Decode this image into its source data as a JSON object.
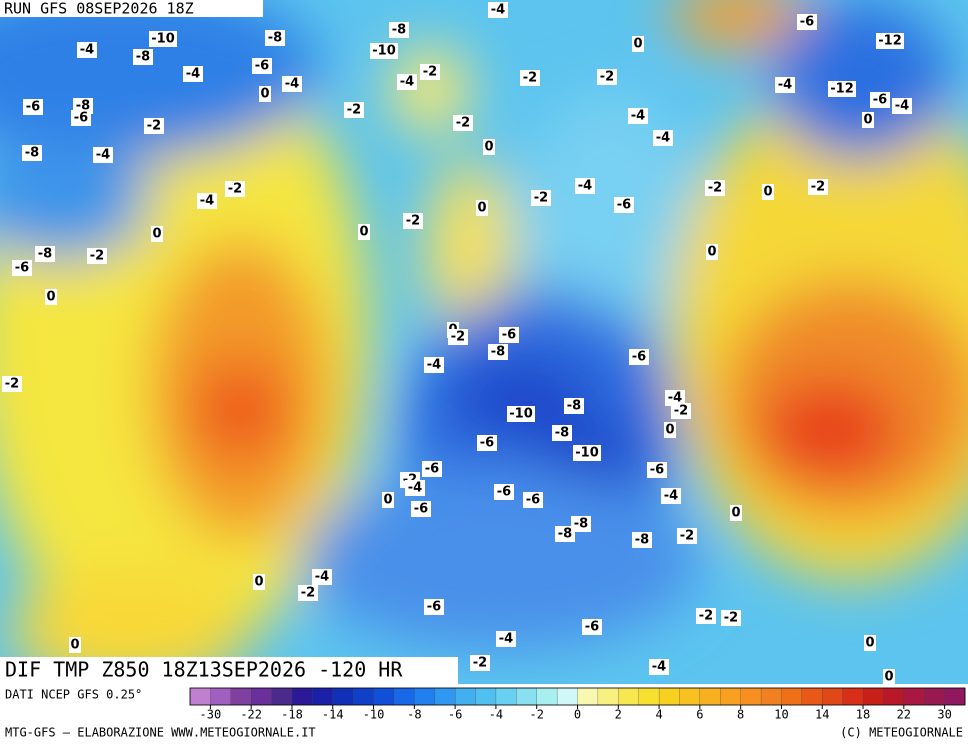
{
  "header": {
    "run": "RUN GFS 08SEP2026 18Z"
  },
  "map": {
    "title": "DIF TMP Z850 18Z13SEP2026 -120 HR",
    "contour_labels": [
      -4,
      -6,
      -12,
      -8,
      -10,
      -8,
      -4,
      -8,
      -10,
      0,
      -6,
      -4,
      -2,
      -2,
      -2,
      -4,
      -4,
      0,
      -4,
      -12,
      -6,
      -4,
      -6,
      -8,
      -6,
      -2,
      -4,
      0,
      -2,
      -2,
      -4,
      0,
      -8,
      -4,
      -2,
      -4,
      -2,
      0,
      -2,
      -4,
      -2,
      0,
      -6,
      -2,
      0,
      0,
      -8,
      -2,
      0,
      -6,
      0,
      0,
      -2,
      -6,
      -8,
      -6,
      -4,
      -2,
      -4,
      -2,
      -10,
      -8,
      0,
      -8,
      -6,
      -10,
      -6,
      -6,
      -2,
      -4,
      0,
      -6,
      -6,
      -4,
      -6,
      0,
      -8,
      -8,
      -2,
      -8,
      0,
      -4,
      -2,
      -6,
      -2,
      -2,
      -6,
      -4,
      0,
      0,
      -2,
      -4,
      0
    ]
  },
  "colorbar": {
    "colors": [
      "#c080d0",
      "#a060c0",
      "#8040a0",
      "#6a2f9a",
      "#4a2a8c",
      "#2a1a98",
      "#1a20a8",
      "#1030b8",
      "#1040c8",
      "#1050d8",
      "#1868e8",
      "#2080f0",
      "#3098f0",
      "#40b0f0",
      "#50c0f0",
      "#68d0f0",
      "#88e0f0",
      "#a8f0f0",
      "#d0f8f8",
      "#f8f8b0",
      "#f8f080",
      "#f8e850",
      "#f8e030",
      "#f8d020",
      "#f8c020",
      "#f8b020",
      "#f8a020",
      "#f89020",
      "#f08020",
      "#f07018",
      "#e85818",
      "#e04818",
      "#d83018",
      "#c82018",
      "#b81828",
      "#a81840",
      "#981850",
      "#901860"
    ],
    "ticks": [
      -30,
      -22,
      -18,
      -14,
      -10,
      -8,
      -6,
      -4,
      -2,
      0,
      2,
      4,
      6,
      8,
      10,
      14,
      18,
      22,
      30
    ]
  },
  "footer": {
    "source": "DATI NCEP GFS 0.25°",
    "credit": "MTG-GFS — ELABORAZIONE WWW.METEOGIORNALE.IT",
    "copyright": "(C) METEOGIORNALE"
  }
}
